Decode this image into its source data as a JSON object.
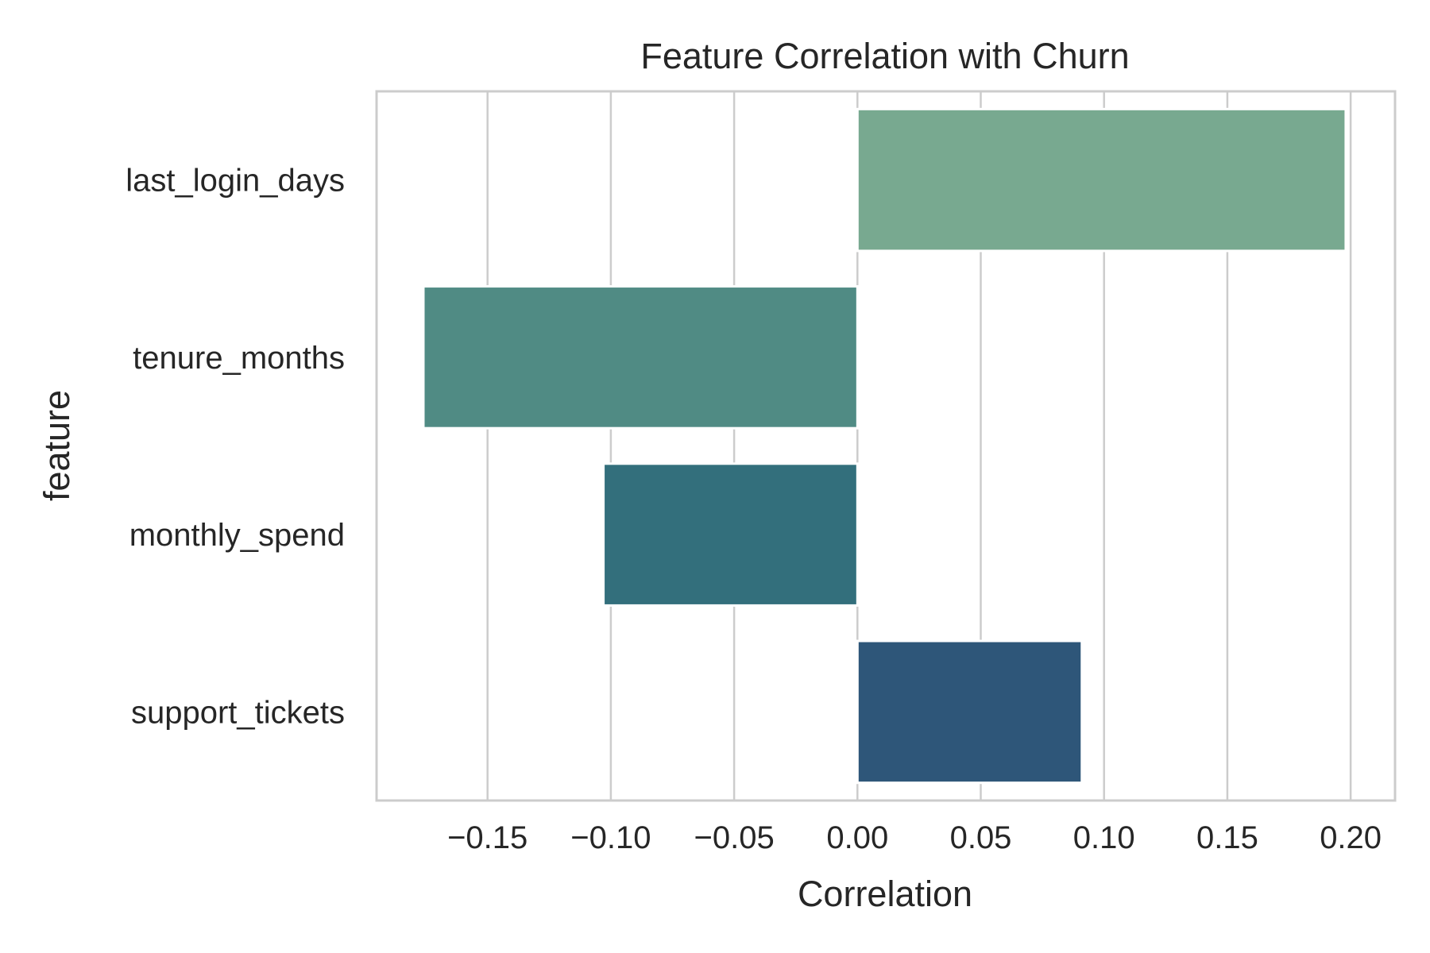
{
  "chart_data": {
    "type": "bar",
    "orientation": "horizontal",
    "title": "Feature Correlation with Churn",
    "xlabel": "Correlation",
    "ylabel": "feature",
    "categories": [
      "last_login_days",
      "tenure_months",
      "monthly_spend",
      "support_tickets"
    ],
    "values": [
      0.198,
      -0.176,
      -0.103,
      0.091
    ],
    "colors": [
      "#78a990",
      "#508b84",
      "#336f7c",
      "#2e5679"
    ],
    "xlim": [
      -0.195,
      0.218
    ],
    "xticks": [
      -0.15,
      -0.1,
      -0.05,
      0.0,
      0.05,
      0.1,
      0.15,
      0.2
    ],
    "xtick_labels": [
      "−0.15",
      "−0.10",
      "−0.05",
      "0.00",
      "0.05",
      "0.10",
      "0.15",
      "0.20"
    ],
    "grid": "vertical",
    "grid_color": "#cccccc",
    "spine_color": "#cccccc",
    "legend": "none"
  }
}
